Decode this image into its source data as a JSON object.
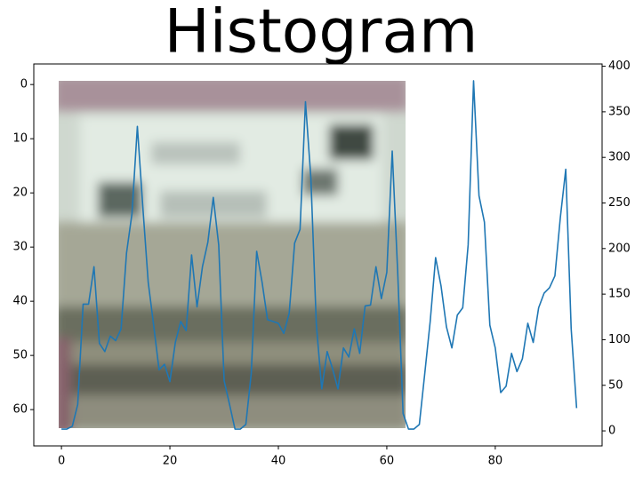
{
  "chart_data": {
    "type": "line",
    "title": "Histogram",
    "x": [
      0,
      1,
      2,
      3,
      4,
      5,
      6,
      7,
      8,
      9,
      10,
      11,
      12,
      13,
      14,
      15,
      16,
      17,
      18,
      19,
      20,
      21,
      22,
      23,
      24,
      25,
      26,
      27,
      28,
      29,
      30,
      31,
      32,
      33,
      34,
      35,
      36,
      37,
      38,
      39,
      40,
      41,
      42,
      43,
      44,
      45,
      46,
      47,
      48,
      49,
      50,
      51,
      52,
      53,
      54,
      55,
      56,
      57,
      58,
      59,
      60,
      61,
      62,
      63,
      64,
      65,
      66,
      67,
      68,
      69,
      70,
      71,
      72,
      73,
      74,
      75,
      76,
      77,
      78,
      79,
      80,
      81,
      82,
      83,
      84,
      85,
      86,
      87,
      88,
      89,
      90,
      91,
      92,
      93,
      94,
      95
    ],
    "series": [
      {
        "color": "#1f77b4",
        "axis": "y2",
        "values": [
          2,
          2,
          5,
          29,
          139,
          139,
          180,
          96,
          87,
          104,
          99,
          112,
          195,
          238,
          334,
          246,
          163,
          116,
          67,
          73,
          54,
          97,
          120,
          110,
          193,
          136,
          180,
          207,
          256,
          204,
          55,
          29,
          2,
          2,
          7,
          63,
          197,
          163,
          122,
          120,
          118,
          107,
          129,
          206,
          221,
          361,
          277,
          117,
          46,
          87,
          68,
          46,
          91,
          81,
          112,
          85,
          137,
          138,
          180,
          145,
          174,
          307,
          175,
          19,
          2,
          2,
          7,
          63,
          120,
          190,
          159,
          114,
          91,
          127,
          135,
          204,
          384,
          258,
          229,
          116,
          91,
          42,
          49,
          85,
          65,
          79,
          118,
          97,
          135,
          151,
          157,
          170,
          234,
          287,
          112,
          25
        ]
      }
    ],
    "xlim": [
      -5.1,
      99.7
    ],
    "xticks": [
      0,
      20,
      40,
      60,
      80
    ],
    "ylim": [
      66.7,
      -3.8
    ],
    "yticks": [
      0,
      10,
      20,
      30,
      40,
      50,
      60
    ],
    "y2lim": [
      -16.5,
      402.5
    ],
    "y2ticks": [
      0,
      50,
      100,
      150,
      200,
      250,
      300,
      350,
      400
    ]
  }
}
